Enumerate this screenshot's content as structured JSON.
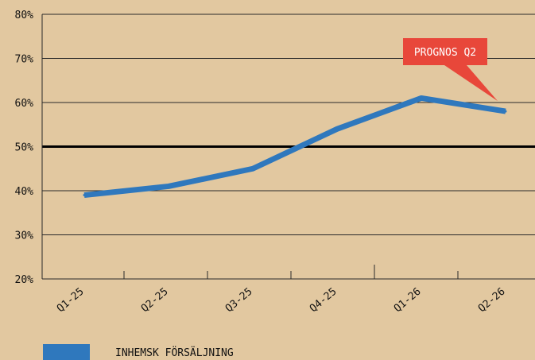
{
  "chart_data": {
    "type": "line",
    "categories": [
      "Q1-25",
      "Q2-25",
      "Q3-25",
      "Q4-25",
      "Q1-26",
      "Q2-26"
    ],
    "x": [
      0,
      1,
      2,
      3,
      4,
      5
    ],
    "series": [
      {
        "name": "INHEMSK FÖRSÄLJNING",
        "color": "#2f78bd",
        "x": [
          0,
          1,
          2,
          3,
          3.5,
          4,
          5
        ],
        "values": [
          39,
          41,
          45,
          54,
          57.5,
          61,
          58
        ]
      }
    ],
    "yticks": [
      20,
      30,
      40,
      50,
      60,
      70,
      80
    ],
    "ytick_labels": [
      "20%",
      "30%",
      "40%",
      "50%",
      "60%",
      "70%",
      "80%"
    ],
    "ylim": [
      20,
      80
    ],
    "reference_line": {
      "y": 50,
      "color": "#000000"
    },
    "grid": true,
    "grid_color": "#2a2a2a",
    "annotation": {
      "text": "PROGNOS Q2",
      "x": 5,
      "y": 58,
      "color": "#e8473a",
      "text_color": "#ffffff"
    },
    "legend": {
      "placement": "bottom-left"
    },
    "title": "",
    "xlabel": "",
    "ylabel": "",
    "background": "#e2c8a0"
  }
}
